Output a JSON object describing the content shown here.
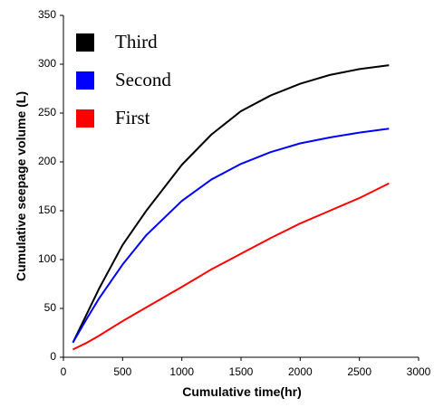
{
  "chart_data": {
    "type": "line",
    "xlabel": "Cumulative time(hr)",
    "ylabel": "Cumulative seepage volume (L)",
    "x": [
      80,
      200,
      300,
      500,
      700,
      1000,
      1250,
      1500,
      1750,
      2000,
      2250,
      2500,
      2750
    ],
    "series": [
      {
        "name": "Third",
        "color": "#000000",
        "values": [
          15,
          45,
          70,
          115,
          150,
          197,
          228,
          252,
          268,
          280,
          289,
          295,
          299
        ]
      },
      {
        "name": "Second",
        "color": "#0000ff",
        "values": [
          15,
          40,
          60,
          95,
          125,
          160,
          182,
          198,
          210,
          219,
          225,
          230,
          234
        ]
      },
      {
        "name": "First",
        "color": "#ff0000",
        "values": [
          8,
          15,
          22,
          37,
          51,
          72,
          90,
          106,
          122,
          137,
          150,
          163,
          178
        ]
      }
    ],
    "xlim": [
      0,
      3000
    ],
    "xticks": [
      0,
      500,
      1000,
      1500,
      2000,
      2500,
      3000
    ],
    "ylim": [
      0,
      350
    ],
    "yticks": [
      0,
      50,
      100,
      150,
      200,
      250,
      300,
      350
    ],
    "grid": false,
    "legend": "upper left"
  }
}
